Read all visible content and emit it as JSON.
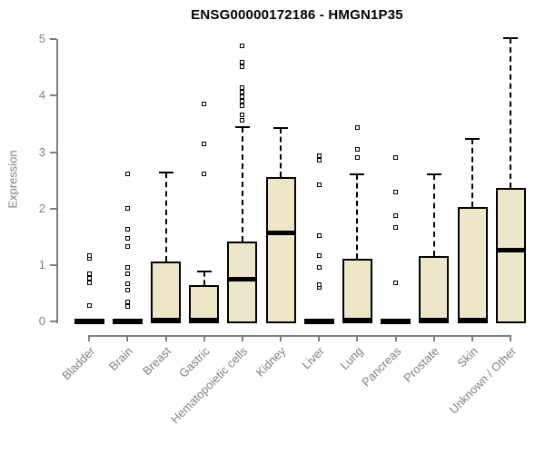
{
  "title": "ENSG00000172186 - HMGN1P35",
  "chart_data": {
    "type": "boxplot",
    "title": "ENSG00000172186 - HMGN1P35",
    "xlabel": "",
    "ylabel": "Expression",
    "ylim": [
      0,
      5
    ],
    "yticks": [
      0,
      1,
      2,
      3,
      4,
      5
    ],
    "grid": false,
    "legend": null,
    "categories": [
      "Bladder",
      "Brain",
      "Breast",
      "Gastric",
      "Hematopoietic cells",
      "Kidney",
      "Liver",
      "Lung",
      "Pancreas",
      "Prostate",
      "Skin",
      "Unknown / Other"
    ],
    "boxes": [
      {
        "category": "Bladder",
        "q1": 0,
        "median": 0,
        "q3": 0,
        "whisker_low": 0,
        "whisker_high": 0,
        "outliers": [
          0.28,
          0.68,
          0.76,
          0.84,
          1.12,
          1.17
        ]
      },
      {
        "category": "Brain",
        "q1": 0,
        "median": 0,
        "q3": 0,
        "whisker_low": 0,
        "whisker_high": 0,
        "outliers": [
          0.27,
          0.35,
          0.56,
          0.66,
          0.84,
          0.95,
          1.32,
          1.48,
          1.64,
          2.0,
          2.61
        ]
      },
      {
        "category": "Breast",
        "q1": 0,
        "median": 0.03,
        "q3": 1.06,
        "whisker_low": 0,
        "whisker_high": 2.64,
        "outliers": []
      },
      {
        "category": "Gastric",
        "q1": 0,
        "median": 0.03,
        "q3": 0.64,
        "whisker_low": 0,
        "whisker_high": 0.88,
        "outliers": [
          2.61,
          3.14,
          3.85
        ]
      },
      {
        "category": "Hematopoietic cells",
        "q1": 0,
        "median": 0.75,
        "q3": 1.42,
        "whisker_low": 0,
        "whisker_high": 3.44,
        "outliers": [
          3.57,
          3.66,
          3.82,
          3.9,
          3.98,
          4.06,
          4.14,
          4.52,
          4.6,
          4.89
        ]
      },
      {
        "category": "Kidney",
        "q1": 0,
        "median": 1.57,
        "q3": 2.56,
        "whisker_low": 0,
        "whisker_high": 3.42,
        "outliers": []
      },
      {
        "category": "Liver",
        "q1": 0,
        "median": 0,
        "q3": 0,
        "whisker_low": 0,
        "whisker_high": 0,
        "outliers": [
          0.6,
          0.65,
          0.96,
          1.17,
          1.52,
          2.42,
          2.85,
          2.93
        ]
      },
      {
        "category": "Lung",
        "q1": 0,
        "median": 0.02,
        "q3": 1.11,
        "whisker_low": 0,
        "whisker_high": 2.6,
        "outliers": [
          2.9,
          3.05,
          3.44
        ]
      },
      {
        "category": "Pancreas",
        "q1": 0,
        "median": 0,
        "q3": 0,
        "whisker_low": 0,
        "whisker_high": 0,
        "outliers": [
          0.68,
          1.67,
          1.87,
          2.3,
          2.9
        ]
      },
      {
        "category": "Prostate",
        "q1": 0,
        "median": 0.02,
        "q3": 1.16,
        "whisker_low": 0,
        "whisker_high": 2.61,
        "outliers": []
      },
      {
        "category": "Skin",
        "q1": 0,
        "median": 0.03,
        "q3": 2.02,
        "whisker_low": 0,
        "whisker_high": 3.24,
        "outliers": []
      },
      {
        "category": "Unknown / Other",
        "q1": 0,
        "median": 1.27,
        "q3": 2.37,
        "whisker_low": 0,
        "whisker_high": 5.02,
        "outliers": []
      }
    ]
  },
  "colors": {
    "background": "#ffffff",
    "box_fill": "#EDE6C8",
    "box_border": "#000000",
    "median": "#000000",
    "whisker": "#000000",
    "outlier_fill": "#ffffff",
    "axis": "#7f7f7f",
    "tick_label": "#7f7f7f",
    "title": "#000000"
  }
}
